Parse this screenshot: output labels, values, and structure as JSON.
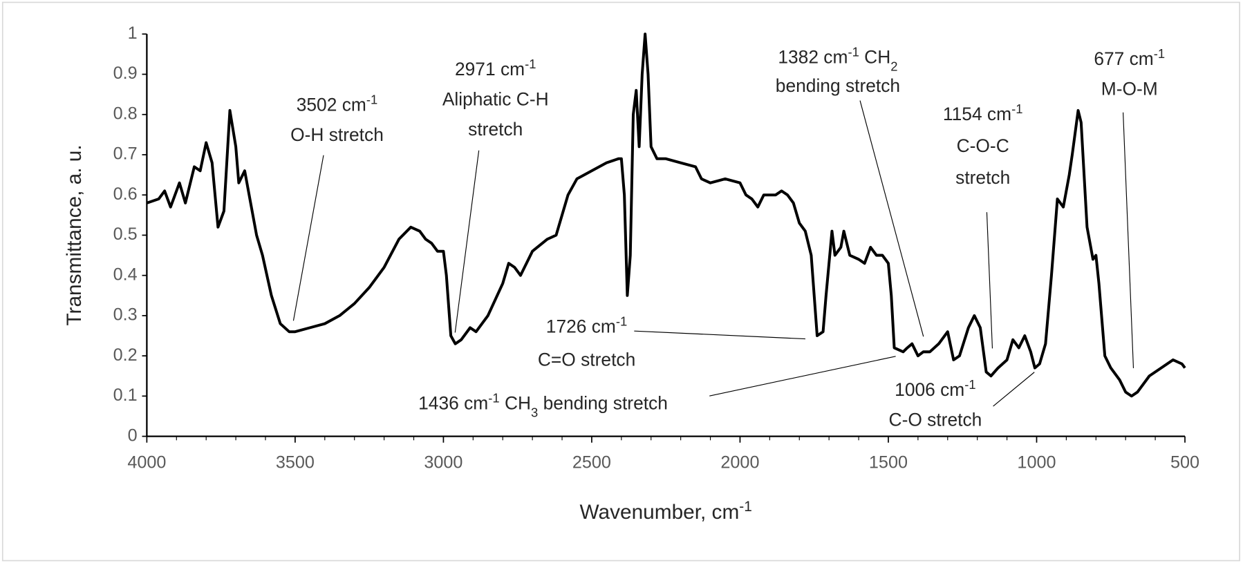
{
  "chart_data": {
    "type": "line",
    "xlabel": [
      {
        "text": "Wavenumber, cm"
      },
      {
        "sup": "-1"
      }
    ],
    "ylabel": "Transmittance, a. u.",
    "xlim": [
      4000,
      500
    ],
    "xticks": [
      4000,
      3500,
      3000,
      2500,
      2000,
      1500,
      1000,
      500
    ],
    "ylim": [
      0,
      1
    ],
    "yticks": [
      0,
      0.1,
      0.2,
      0.3,
      0.4,
      0.5,
      0.6,
      0.7,
      0.8,
      0.9,
      1
    ],
    "color": "#000000",
    "x": [
      4000,
      3960,
      3940,
      3920,
      3890,
      3870,
      3840,
      3820,
      3800,
      3780,
      3760,
      3740,
      3720,
      3700,
      3690,
      3670,
      3650,
      3630,
      3610,
      3580,
      3550,
      3520,
      3500,
      3450,
      3400,
      3350,
      3300,
      3250,
      3200,
      3150,
      3110,
      3080,
      3060,
      3040,
      3020,
      3000,
      2990,
      2975,
      2960,
      2940,
      2910,
      2890,
      2850,
      2800,
      2780,
      2760,
      2740,
      2700,
      2650,
      2620,
      2580,
      2550,
      2500,
      2450,
      2410,
      2400,
      2390,
      2380,
      2370,
      2360,
      2350,
      2340,
      2330,
      2320,
      2310,
      2300,
      2280,
      2250,
      2200,
      2150,
      2130,
      2100,
      2050,
      2000,
      1980,
      1960,
      1940,
      1920,
      1880,
      1860,
      1840,
      1820,
      1800,
      1780,
      1760,
      1740,
      1720,
      1710,
      1700,
      1690,
      1680,
      1660,
      1650,
      1630,
      1600,
      1580,
      1560,
      1540,
      1520,
      1500,
      1490,
      1480,
      1450,
      1436,
      1420,
      1400,
      1382,
      1360,
      1330,
      1300,
      1280,
      1260,
      1230,
      1210,
      1190,
      1170,
      1154,
      1130,
      1100,
      1080,
      1060,
      1040,
      1020,
      1006,
      990,
      970,
      950,
      930,
      910,
      890,
      880,
      860,
      850,
      830,
      810,
      800,
      790,
      770,
      750,
      720,
      700,
      680,
      660,
      620,
      580,
      540,
      510,
      500
    ],
    "values": [
      0.58,
      0.59,
      0.61,
      0.57,
      0.63,
      0.58,
      0.67,
      0.66,
      0.73,
      0.68,
      0.52,
      0.56,
      0.81,
      0.72,
      0.63,
      0.66,
      0.58,
      0.5,
      0.45,
      0.35,
      0.28,
      0.26,
      0.26,
      0.27,
      0.28,
      0.3,
      0.33,
      0.37,
      0.42,
      0.49,
      0.52,
      0.51,
      0.49,
      0.48,
      0.46,
      0.46,
      0.4,
      0.25,
      0.23,
      0.24,
      0.27,
      0.26,
      0.3,
      0.38,
      0.43,
      0.42,
      0.4,
      0.46,
      0.49,
      0.5,
      0.6,
      0.64,
      0.66,
      0.68,
      0.69,
      0.69,
      0.6,
      0.35,
      0.45,
      0.8,
      0.86,
      0.72,
      0.9,
      1.0,
      0.9,
      0.72,
      0.69,
      0.69,
      0.68,
      0.67,
      0.64,
      0.63,
      0.64,
      0.63,
      0.6,
      0.59,
      0.57,
      0.6,
      0.6,
      0.61,
      0.6,
      0.58,
      0.53,
      0.51,
      0.45,
      0.25,
      0.26,
      0.35,
      0.43,
      0.51,
      0.45,
      0.47,
      0.51,
      0.45,
      0.44,
      0.43,
      0.47,
      0.45,
      0.45,
      0.43,
      0.35,
      0.22,
      0.21,
      0.22,
      0.23,
      0.2,
      0.21,
      0.21,
      0.23,
      0.26,
      0.19,
      0.2,
      0.27,
      0.3,
      0.27,
      0.16,
      0.15,
      0.17,
      0.19,
      0.24,
      0.22,
      0.25,
      0.21,
      0.17,
      0.18,
      0.23,
      0.4,
      0.59,
      0.57,
      0.65,
      0.7,
      0.81,
      0.78,
      0.52,
      0.44,
      0.45,
      0.38,
      0.2,
      0.17,
      0.14,
      0.11,
      0.1,
      0.11,
      0.15,
      0.17,
      0.19,
      0.18,
      0.17
    ],
    "annotations": [
      {
        "lines": [
          [
            {
              "text": "3502 cm"
            },
            {
              "sup": "-1"
            }
          ],
          [
            {
              "text": "O-H stretch"
            }
          ]
        ]
      },
      {
        "lines": [
          [
            {
              "text": "2971 cm"
            },
            {
              "sup": "-1"
            }
          ],
          [
            {
              "text": "Aliphatic C-H"
            }
          ],
          [
            {
              "text": "stretch"
            }
          ]
        ]
      },
      {
        "lines": [
          [
            {
              "text": "1382 cm"
            },
            {
              "sup": "-1"
            },
            {
              "text": " CH"
            },
            {
              "sub": "2"
            }
          ],
          [
            {
              "text": "bending stretch"
            }
          ]
        ]
      },
      {
        "lines": [
          [
            {
              "text": "677 cm"
            },
            {
              "sup": "-1"
            }
          ],
          [
            {
              "text": "M-O-M"
            }
          ]
        ]
      },
      {
        "lines": [
          [
            {
              "text": "1154 cm"
            },
            {
              "sup": "-1"
            }
          ],
          [
            {
              "text": "C-O-C"
            }
          ],
          [
            {
              "text": "stretch"
            }
          ]
        ]
      },
      {
        "lines": [
          [
            {
              "text": "1726 cm"
            },
            {
              "sup": "-1"
            }
          ],
          [
            {
              "text": "C=O stretch"
            }
          ]
        ]
      },
      {
        "lines": [
          [
            {
              "text": "1436 cm"
            },
            {
              "sup": "-1"
            },
            {
              "text": " CH"
            },
            {
              "sub": "3"
            },
            {
              "text": " bending stretch"
            }
          ]
        ]
      },
      {
        "lines": [
          [
            {
              "text": "1006 cm"
            },
            {
              "sup": "-1"
            }
          ],
          [
            {
              "text": "C-O stretch"
            }
          ]
        ]
      }
    ]
  }
}
